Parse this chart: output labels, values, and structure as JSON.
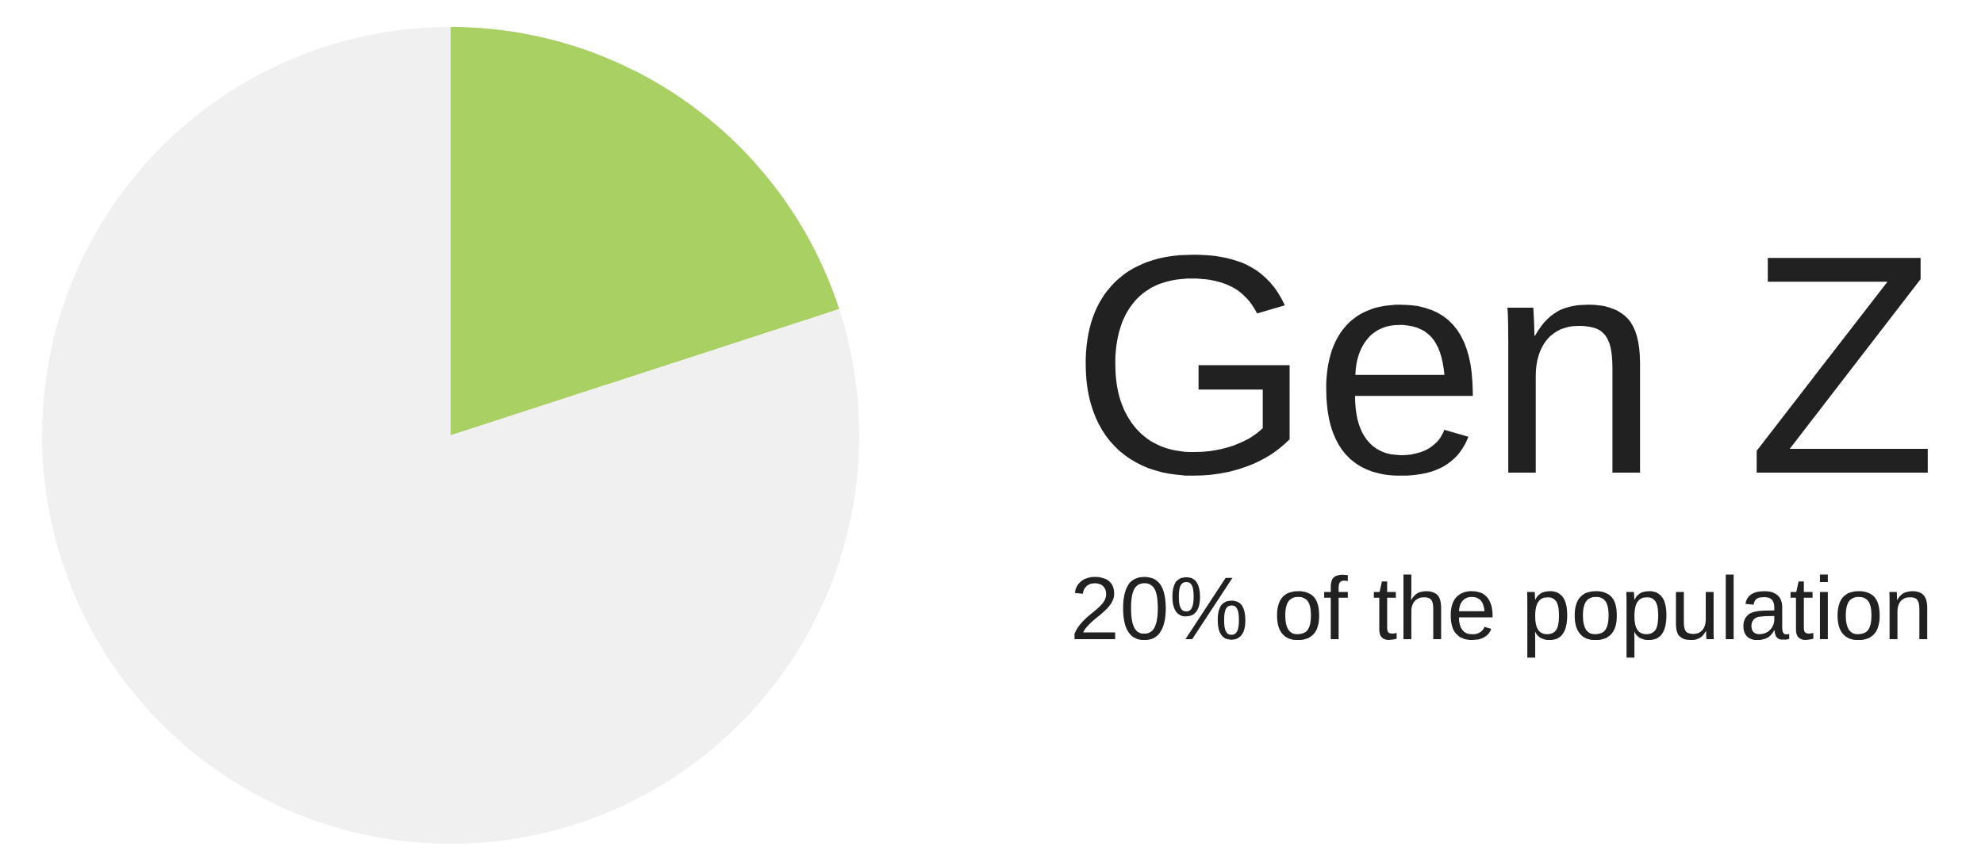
{
  "chart_data": {
    "type": "pie",
    "title": "Gen Z",
    "subtitle": "20% of the population",
    "categories": [
      null,
      null
    ],
    "values": [
      20,
      80
    ],
    "colors": [
      "#a8d063",
      "#f0f0f0"
    ]
  }
}
